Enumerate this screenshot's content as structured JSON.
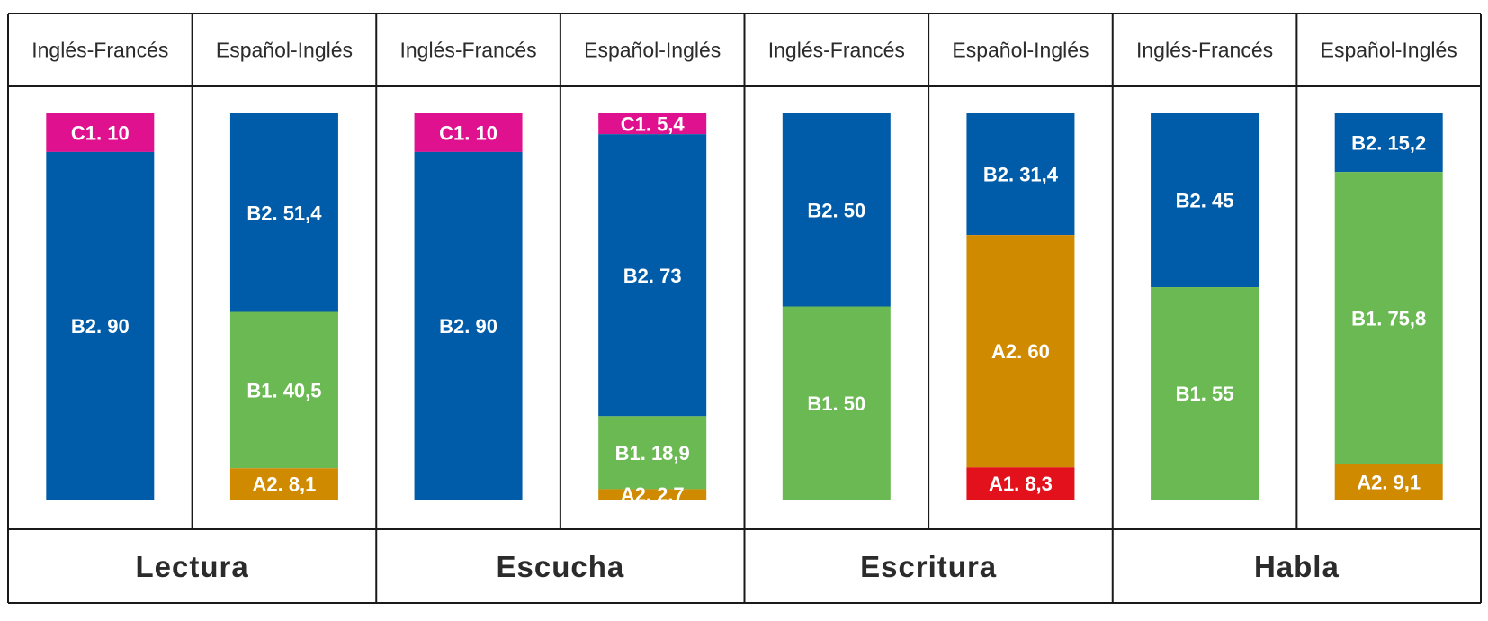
{
  "colors": {
    "C1": "#e0118f",
    "B2": "#005ca8",
    "B1": "#6ab952",
    "A2": "#d08a00",
    "A1": "#e3111b"
  },
  "chart_data": {
    "type": "bar",
    "stacked": true,
    "grid": true,
    "unit": "%",
    "groups": [
      {
        "skill": "Lectura",
        "bars": [
          {
            "pair": "Inglés-Francés",
            "segments": [
              {
                "level": "C1",
                "value": 10,
                "label": "C1. 10"
              },
              {
                "level": "B2",
                "value": 90,
                "label": "B2. 90"
              }
            ]
          },
          {
            "pair": "Español-Inglés",
            "segments": [
              {
                "level": "B2",
                "value": 51.4,
                "label": "B2. 51,4"
              },
              {
                "level": "B1",
                "value": 40.5,
                "label": "B1. 40,5"
              },
              {
                "level": "A2",
                "value": 8.1,
                "label": "A2. 8,1"
              }
            ]
          }
        ]
      },
      {
        "skill": "Escucha",
        "bars": [
          {
            "pair": "Inglés-Francés",
            "segments": [
              {
                "level": "C1",
                "value": 10,
                "label": "C1. 10"
              },
              {
                "level": "B2",
                "value": 90,
                "label": "B2. 90"
              }
            ]
          },
          {
            "pair": "Español-Inglés",
            "segments": [
              {
                "level": "C1",
                "value": 5.4,
                "label": "C1. 5,4"
              },
              {
                "level": "B2",
                "value": 73,
                "label": "B2. 73"
              },
              {
                "level": "B1",
                "value": 18.9,
                "label": "B1. 18,9"
              },
              {
                "level": "A2",
                "value": 2.7,
                "label": "A2. 2,7"
              }
            ]
          }
        ]
      },
      {
        "skill": "Escritura",
        "bars": [
          {
            "pair": "Inglés-Francés",
            "segments": [
              {
                "level": "B2",
                "value": 50,
                "label": "B2. 50"
              },
              {
                "level": "B1",
                "value": 50,
                "label": "B1. 50"
              }
            ]
          },
          {
            "pair": "Español-Inglés",
            "segments": [
              {
                "level": "B2",
                "value": 31.4,
                "label": "B2. 31,4"
              },
              {
                "level": "A2",
                "value": 60,
                "label": "A2. 60"
              },
              {
                "level": "A1",
                "value": 8.3,
                "label": "A1. 8,3"
              }
            ]
          }
        ]
      },
      {
        "skill": "Habla",
        "bars": [
          {
            "pair": "Inglés-Francés",
            "segments": [
              {
                "level": "B2",
                "value": 45,
                "label": "B2. 45"
              },
              {
                "level": "B1",
                "value": 55,
                "label": "B1. 55"
              }
            ]
          },
          {
            "pair": "Español-Inglés",
            "segments": [
              {
                "level": "B2",
                "value": 15.2,
                "label": "B2. 15,2"
              },
              {
                "level": "B1",
                "value": 75.8,
                "label": "B1. 75,8"
              },
              {
                "level": "A2",
                "value": 9.1,
                "label": "A2. 9,1"
              }
            ]
          }
        ]
      }
    ]
  }
}
